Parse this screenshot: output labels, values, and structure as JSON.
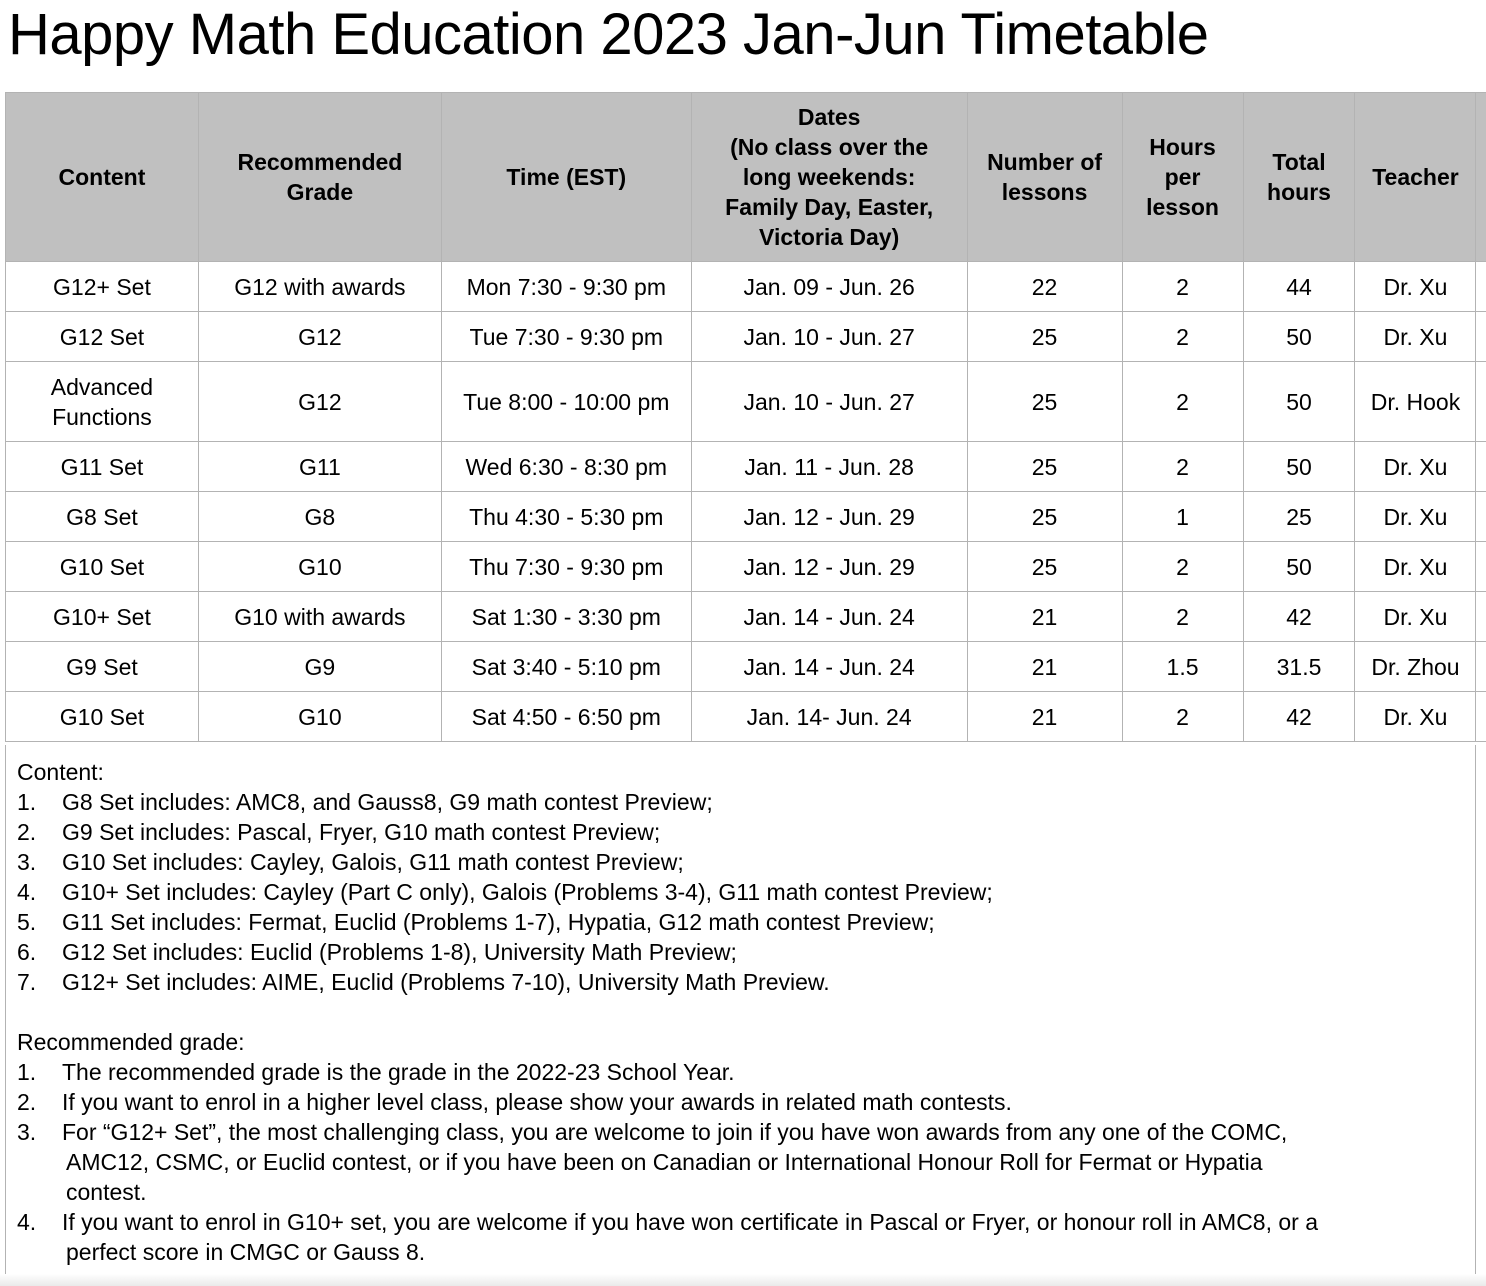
{
  "title": "Happy Math Education 2023 Jan-Jun Timetable",
  "headers": {
    "content": "Content",
    "grade_1": "Recommended",
    "grade_2": "Grade",
    "time": "Time (EST)",
    "dates_1": "Dates",
    "dates_2": "(No class over the",
    "dates_3": "long weekends:",
    "dates_4": "Family Day, Easter,",
    "dates_5": "Victoria Day)",
    "lessons_1": "Number of",
    "lessons_2": "lessons",
    "hpl_1": "Hours",
    "hpl_2": "per",
    "hpl_3": "lesson",
    "total_1": "Total",
    "total_2": "hours",
    "teacher": "Teacher"
  },
  "rows": [
    {
      "content": "G12+ Set",
      "grade": "G12 with awards",
      "time": "Mon 7:30 - 9:30 pm",
      "dates": "Jan. 09 - Jun. 26",
      "lessons": "22",
      "hpl": "2",
      "total": "44",
      "teacher": "Dr. Xu"
    },
    {
      "content": "G12 Set",
      "grade": "G12",
      "time": "Tue 7:30 - 9:30 pm",
      "dates": "Jan. 10 - Jun. 27",
      "lessons": "25",
      "hpl": "2",
      "total": "50",
      "teacher": "Dr. Xu"
    },
    {
      "content_1": "Advanced",
      "content_2": "Functions",
      "grade": "G12",
      "time": "Tue 8:00 - 10:00 pm",
      "dates": "Jan. 10 - Jun. 27",
      "lessons": "25",
      "hpl": "2",
      "total": "50",
      "teacher": "Dr. Hook"
    },
    {
      "content": "G11 Set",
      "grade": "G11",
      "time": "Wed 6:30 - 8:30 pm",
      "dates": "Jan. 11 - Jun. 28",
      "lessons": "25",
      "hpl": "2",
      "total": "50",
      "teacher": "Dr. Xu"
    },
    {
      "content": "G8 Set",
      "grade": "G8",
      "time": "Thu 4:30 - 5:30 pm",
      "dates": "Jan. 12 - Jun. 29",
      "lessons": "25",
      "hpl": "1",
      "total": "25",
      "teacher": "Dr. Xu"
    },
    {
      "content": "G10 Set",
      "grade": "G10",
      "time": "Thu 7:30 - 9:30 pm",
      "dates": "Jan. 12 - Jun. 29",
      "lessons": "25",
      "hpl": "2",
      "total": "50",
      "teacher": "Dr. Xu"
    },
    {
      "content": "G10+ Set",
      "grade": "G10 with awards",
      "time": "Sat 1:30 - 3:30 pm",
      "dates": "Jan. 14 - Jun. 24",
      "lessons": "21",
      "hpl": "2",
      "total": "42",
      "teacher": "Dr. Xu"
    },
    {
      "content": "G9 Set",
      "grade": "G9",
      "time": "Sat 3:40 - 5:10 pm",
      "dates": "Jan. 14 - Jun. 24",
      "lessons": "21",
      "hpl": "1.5",
      "total": "31.5",
      "teacher": "Dr. Zhou"
    },
    {
      "content": "G10 Set",
      "grade": "G10",
      "time": "Sat 4:50 - 6:50 pm",
      "dates": "Jan. 14- Jun. 24",
      "lessons": "21",
      "hpl": "2",
      "total": "42",
      "teacher": "Dr. Xu"
    }
  ],
  "notes": {
    "content_heading": "Content:",
    "content_items": [
      {
        "num": "1.",
        "text": "G8 Set includes: AMC8, and Gauss8, G9 math contest Preview;"
      },
      {
        "num": "2.",
        "text": "G9 Set includes: Pascal, Fryer, G10 math contest Preview;"
      },
      {
        "num": "3.",
        "text": "G10 Set includes: Cayley, Galois, G11 math contest Preview;"
      },
      {
        "num": "4.",
        "text": "G10+ Set includes: Cayley (Part C only), Galois (Problems 3-4), G11 math contest Preview;"
      },
      {
        "num": "5.",
        "text": "G11 Set includes: Fermat, Euclid (Problems 1-7), Hypatia, G12 math contest Preview;"
      },
      {
        "num": "6.",
        "text": "G12 Set includes: Euclid (Problems 1-8), University Math Preview;"
      },
      {
        "num": "7.",
        "text": "G12+ Set includes: AIME, Euclid (Problems 7-10), University Math Preview."
      }
    ],
    "grade_heading": "Recommended grade:",
    "grade_items": [
      {
        "num": "1.",
        "lines": [
          "The recommended grade is the grade in the 2022-23 School Year."
        ]
      },
      {
        "num": "2.",
        "lines": [
          "If you want to enrol in a higher level class, please show your awards in related math contests."
        ]
      },
      {
        "num": "3.",
        "lines": [
          "For “G12+ Set”, the most challenging class, you are welcome to join if you have won awards from any one of the COMC,",
          "AMC12, CSMC, or Euclid contest, or if you have been on Canadian or International Honour Roll for Fermat or Hypatia",
          "contest."
        ]
      },
      {
        "num": "4.",
        "lines": [
          "If you want to enrol in G10+ set, you are welcome if you have won certificate in Pascal or Fryer, or honour roll in AMC8, or a",
          "perfect score in CMGC or Gauss 8."
        ]
      }
    ]
  }
}
